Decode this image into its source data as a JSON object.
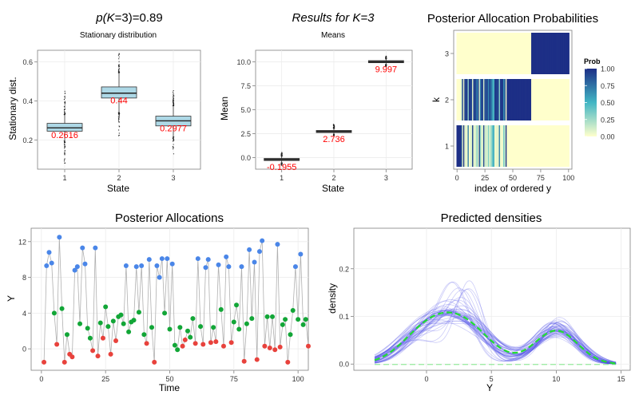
{
  "chart_data": [
    {
      "id": "stationary",
      "type": "boxplot",
      "title": "p(K=3)=0.89",
      "title_parts": {
        "func": "p(",
        "var": "K",
        "rest": "=3)=0.89"
      },
      "subtitle": "Stationary distribution",
      "xlabel": "State",
      "ylabel": "Stationary dist.",
      "categories": [
        "1",
        "2",
        "3"
      ],
      "ylim": [
        0.05,
        0.66
      ],
      "yticks": [
        0.2,
        0.4,
        0.6
      ],
      "ytick_labels": [
        "0.2",
        "0.4",
        "0.6"
      ],
      "fill": "#add8e6",
      "label_color": "#ff0000",
      "boxes": [
        {
          "q1": 0.245,
          "median": 0.262,
          "q3": 0.285,
          "wlo": 0.195,
          "whi": 0.33,
          "omin": 0.07,
          "omax": 0.45,
          "label": "0.2616"
        },
        {
          "q1": 0.415,
          "median": 0.44,
          "q3": 0.472,
          "wlo": 0.34,
          "whi": 0.545,
          "omin": 0.21,
          "omax": 0.65,
          "label": "0.44"
        },
        {
          "q1": 0.272,
          "median": 0.298,
          "q3": 0.322,
          "wlo": 0.215,
          "whi": 0.375,
          "omin": 0.12,
          "omax": 0.46,
          "label": "0.2977"
        }
      ]
    },
    {
      "id": "means",
      "type": "boxplot",
      "title": "Results for K=3",
      "subtitle": "Means",
      "xlabel": "State",
      "ylabel": "Mean",
      "categories": [
        "1",
        "2",
        "3"
      ],
      "ylim": [
        -1.2,
        11.2
      ],
      "yticks": [
        0,
        2.5,
        5,
        7.5,
        10
      ],
      "ytick_labels": [
        "0.0",
        "2.5",
        "5.0",
        "7.5",
        "10.0"
      ],
      "fill": "#555555",
      "label_color": "#ff0000",
      "boxes": [
        {
          "q1": -0.3,
          "median": -0.2,
          "q3": -0.08,
          "wlo": -0.55,
          "whi": 0.15,
          "omin": -0.8,
          "omax": 0.6,
          "label": "-0.1955"
        },
        {
          "q1": 2.62,
          "median": 2.72,
          "q3": 2.84,
          "wlo": 2.45,
          "whi": 3.05,
          "omin": 2.3,
          "omax": 3.5,
          "label": "2.736"
        },
        {
          "q1": 9.9,
          "median": 9.99,
          "q3": 10.12,
          "wlo": 9.7,
          "whi": 10.3,
          "omin": 9.5,
          "omax": 10.6,
          "label": "9.997"
        }
      ]
    },
    {
      "id": "allocation-probs",
      "type": "heatmap",
      "title": "Posterior Allocation Probabilities",
      "xlabel": "index of ordered y",
      "ylabel": "k",
      "xlim": [
        -3,
        103
      ],
      "xticks": [
        0,
        25,
        50,
        75,
        100
      ],
      "rows": [
        "1",
        "2",
        "3"
      ],
      "legend": {
        "title": "Prob",
        "ticks": [
          1.0,
          0.75,
          0.5,
          0.25,
          0.0
        ],
        "tick_labels": [
          "1.00",
          "0.75",
          "0.50",
          "0.25",
          "0.00"
        ]
      },
      "colors": {
        "high": "#1d2f86",
        "mid": "#41b6c4",
        "low": "#ffffcc"
      },
      "pattern": {
        "row1_full_until": 3,
        "mixed_from": 3,
        "mixed_until": 45,
        "row2_full_from": 45,
        "row2_full_until": 67,
        "row3_from": 67
      }
    },
    {
      "id": "posterior-allocations",
      "type": "scatter",
      "title": "Posterior Allocations",
      "xlabel": "Time",
      "ylabel": "Y",
      "xlim": [
        -4,
        104
      ],
      "ylim": [
        -2.4,
        13.5
      ],
      "xticks": [
        0,
        25,
        50,
        75,
        100
      ],
      "yticks": [
        0,
        4,
        8,
        12
      ],
      "groups": {
        "1": "#e8423c",
        "2": "#12a637",
        "3": "#4a86e8"
      },
      "points": [
        [
          1,
          -1.5,
          1
        ],
        [
          2,
          9.3,
          3
        ],
        [
          3,
          10.8,
          3
        ],
        [
          4,
          9.6,
          3
        ],
        [
          5,
          4.0,
          2
        ],
        [
          6,
          0.5,
          1
        ],
        [
          7,
          12.5,
          3
        ],
        [
          8,
          4.5,
          2
        ],
        [
          9,
          -1.5,
          1
        ],
        [
          10,
          1.6,
          2
        ],
        [
          11,
          -0.6,
          1
        ],
        [
          12,
          -0.9,
          1
        ],
        [
          13,
          8.8,
          3
        ],
        [
          14,
          9.2,
          3
        ],
        [
          15,
          2.8,
          2
        ],
        [
          16,
          11.3,
          3
        ],
        [
          17,
          9.5,
          3
        ],
        [
          18,
          2.3,
          2
        ],
        [
          19,
          1.2,
          2
        ],
        [
          20,
          -0.2,
          1
        ],
        [
          21,
          11.3,
          3
        ],
        [
          22,
          -0.8,
          1
        ],
        [
          23,
          2.9,
          2
        ],
        [
          24,
          1.2,
          1
        ],
        [
          25,
          4.7,
          2
        ],
        [
          26,
          2.5,
          2
        ],
        [
          27,
          -0.6,
          1
        ],
        [
          28,
          3.1,
          2
        ],
        [
          29,
          0.9,
          1
        ],
        [
          30,
          3.6,
          2
        ],
        [
          31,
          3.8,
          2
        ],
        [
          32,
          2.8,
          2
        ],
        [
          33,
          9.3,
          3
        ],
        [
          34,
          1.9,
          2
        ],
        [
          35,
          3.0,
          2
        ],
        [
          36,
          3.2,
          2
        ],
        [
          37,
          9.2,
          3
        ],
        [
          38,
          4.1,
          2
        ],
        [
          39,
          9.3,
          3
        ],
        [
          40,
          1.6,
          2
        ],
        [
          41,
          0.6,
          1
        ],
        [
          42,
          10.0,
          3
        ],
        [
          43,
          2.4,
          2
        ],
        [
          44,
          -1.5,
          1
        ],
        [
          45,
          9.3,
          3
        ],
        [
          46,
          8.0,
          3
        ],
        [
          47,
          10.1,
          3
        ],
        [
          48,
          4.0,
          2
        ],
        [
          49,
          10.1,
          3
        ],
        [
          50,
          2.2,
          2
        ],
        [
          51,
          9.5,
          3
        ],
        [
          52,
          0.4,
          2
        ],
        [
          53,
          -0.1,
          2
        ],
        [
          54,
          2.4,
          2
        ],
        [
          55,
          0.3,
          1
        ],
        [
          56,
          1.0,
          1
        ],
        [
          57,
          2.0,
          2
        ],
        [
          58,
          1.3,
          2
        ],
        [
          59,
          3.4,
          2
        ],
        [
          60,
          0.6,
          1
        ],
        [
          61,
          10.1,
          3
        ],
        [
          62,
          2.5,
          2
        ],
        [
          63,
          0.5,
          1
        ],
        [
          64,
          9.1,
          3
        ],
        [
          65,
          10.0,
          3
        ],
        [
          66,
          0.7,
          1
        ],
        [
          67,
          2.4,
          2
        ],
        [
          68,
          0.8,
          1
        ],
        [
          69,
          9.4,
          3
        ],
        [
          70,
          4.4,
          2
        ],
        [
          71,
          0.3,
          1
        ],
        [
          72,
          10.3,
          3
        ],
        [
          73,
          9.2,
          3
        ],
        [
          74,
          0.7,
          1
        ],
        [
          75,
          3.0,
          2
        ],
        [
          76,
          4.9,
          2
        ],
        [
          77,
          2.2,
          2
        ],
        [
          78,
          9.2,
          3
        ],
        [
          79,
          -1.4,
          1
        ],
        [
          80,
          2.8,
          2
        ],
        [
          81,
          11.1,
          3
        ],
        [
          82,
          3.4,
          2
        ],
        [
          83,
          9.7,
          3
        ],
        [
          84,
          -1.2,
          1
        ],
        [
          85,
          10.9,
          3
        ],
        [
          86,
          12.1,
          3
        ],
        [
          87,
          0.3,
          1
        ],
        [
          88,
          3.6,
          2
        ],
        [
          89,
          0.1,
          1
        ],
        [
          90,
          3.6,
          2
        ],
        [
          91,
          -0.1,
          1
        ],
        [
          92,
          11.7,
          3
        ],
        [
          93,
          0.2,
          1
        ],
        [
          94,
          2.7,
          2
        ],
        [
          95,
          3.3,
          2
        ],
        [
          96,
          -1.5,
          1
        ],
        [
          97,
          1.6,
          2
        ],
        [
          98,
          4.3,
          2
        ],
        [
          99,
          9.2,
          3
        ],
        [
          100,
          3.3,
          2
        ],
        [
          101,
          10.6,
          3
        ],
        [
          102,
          2.7,
          2
        ],
        [
          103,
          3.3,
          2
        ],
        [
          104,
          0.3,
          1
        ],
        [
          105,
          3.3,
          2
        ]
      ],
      "line_color": "#b0b0b0"
    },
    {
      "id": "predicted-densities",
      "type": "line",
      "title": "Predicted densities",
      "xlabel": "Y",
      "ylabel": "density",
      "xlim": [
        -5.6,
        15.7
      ],
      "ylim": [
        -0.013,
        0.285
      ],
      "xticks": [
        0,
        5,
        10,
        15
      ],
      "yticks": [
        0,
        0.1,
        0.2
      ],
      "ytick_labels": [
        "0.0",
        "0.1",
        "0.2"
      ],
      "x_range": [
        -4,
        14.6
      ],
      "mean_curve": {
        "color": "#22dd33",
        "components": [
          {
            "weight": 0.27,
            "mean": -0.2,
            "sd": 1.9
          },
          {
            "weight": 0.44,
            "mean": 2.74,
            "sd": 2.1
          },
          {
            "weight": 0.29,
            "mean": 10.0,
            "sd": 1.65
          }
        ]
      },
      "draws": {
        "count": 48,
        "color": "#4a4ae6"
      }
    }
  ]
}
